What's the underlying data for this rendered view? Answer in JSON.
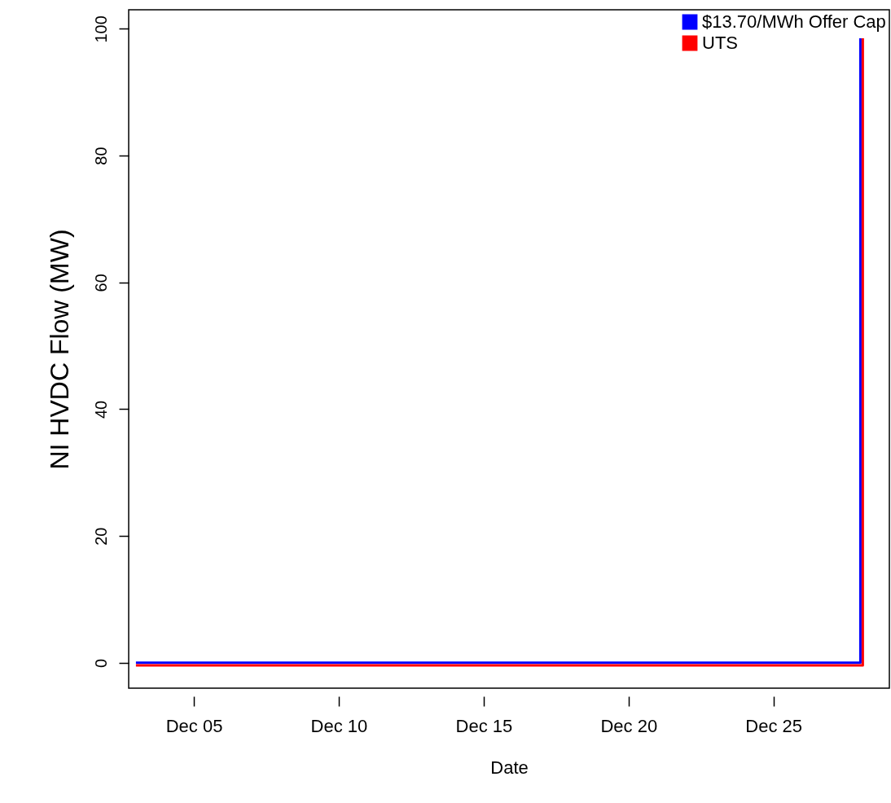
{
  "chart_data": {
    "type": "line",
    "xlabel": "Date",
    "ylabel": "NI HVDC Flow (MW)",
    "x": [
      "--12-03",
      "--12-28",
      "--12-28"
    ],
    "series": [
      {
        "name": "$13.70/MWh Offer Cap",
        "color": "#0000ff",
        "values": [
          0,
          0,
          98.5
        ]
      },
      {
        "name": "UTS",
        "color": "#ff0000",
        "x": [
          "--12-03",
          "--12-28T02:00",
          "--12-28T02:00"
        ],
        "values": [
          -0.4,
          -0.4,
          98.5
        ]
      }
    ],
    "xlim": [
      "--12-02T18:00",
      "--12-29"
    ],
    "ylim": [
      -4,
      103
    ],
    "xticks": [
      {
        "value": "--12-05",
        "label": "Dec 05"
      },
      {
        "value": "--12-10",
        "label": "Dec 10"
      },
      {
        "value": "--12-15",
        "label": "Dec 15"
      },
      {
        "value": "--12-20",
        "label": "Dec 20"
      },
      {
        "value": "--12-25",
        "label": "Dec 25"
      }
    ],
    "yticks": [
      0,
      20,
      40,
      60,
      80,
      100
    ],
    "legend": "top right",
    "grid": false
  }
}
